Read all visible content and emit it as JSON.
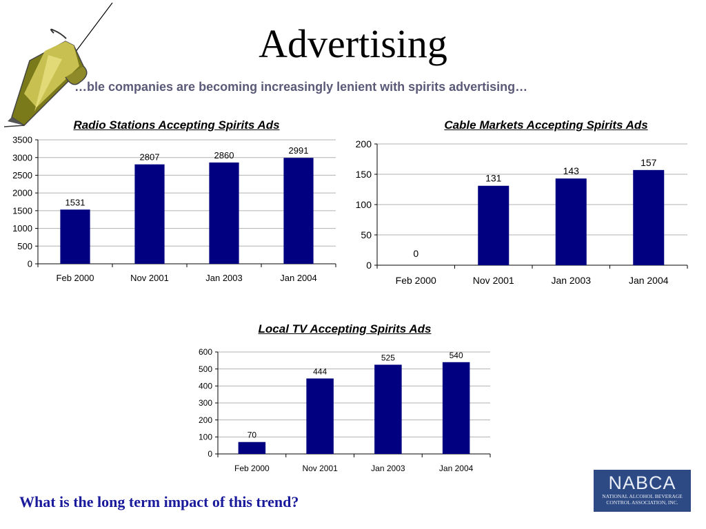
{
  "slide": {
    "title": "Advertising",
    "subtitle": "…ble companies are becoming increasingly lenient with spirits advertising…",
    "question": "What is the long term impact of this trend?"
  },
  "logo": {
    "name": "NABCA",
    "line1": "NATIONAL ALCOHOL BEVERAGE",
    "line2": "CONTROL ASSOCIATION, INC."
  },
  "colors": {
    "bar": "#000080",
    "grid": "#b0b0b0",
    "question": "#1a1a9c",
    "subtitle": "#5a5a78"
  },
  "chart_data": [
    {
      "type": "bar",
      "title": "Radio Stations Accepting Spirits Ads",
      "categories": [
        "Feb 2000",
        "Nov 2001",
        "Jan 2003",
        "Jan 2004"
      ],
      "values": [
        1531,
        2807,
        2860,
        2991
      ],
      "ylim": [
        0,
        3500
      ],
      "yticks": [
        0,
        500,
        1000,
        1500,
        2000,
        2500,
        3000,
        3500
      ],
      "grid": true,
      "xlabel": "",
      "ylabel": ""
    },
    {
      "type": "bar",
      "title": "Cable Markets Accepting Spirits Ads",
      "categories": [
        "Feb 2000",
        "Nov 2001",
        "Jan 2003",
        "Jan 2004"
      ],
      "values": [
        0,
        131,
        143,
        157
      ],
      "ylim": [
        0,
        200
      ],
      "yticks": [
        0,
        50,
        100,
        150,
        200
      ],
      "grid": true,
      "xlabel": "",
      "ylabel": ""
    },
    {
      "type": "bar",
      "title": "Local TV Accepting Spirits Ads",
      "categories": [
        "Feb 2000",
        "Nov 2001",
        "Jan 2003",
        "Jan 2004"
      ],
      "values": [
        70,
        444,
        525,
        540
      ],
      "ylim": [
        0,
        600
      ],
      "yticks": [
        0,
        100,
        200,
        300,
        400,
        500,
        600
      ],
      "grid": true,
      "xlabel": "",
      "ylabel": ""
    }
  ]
}
